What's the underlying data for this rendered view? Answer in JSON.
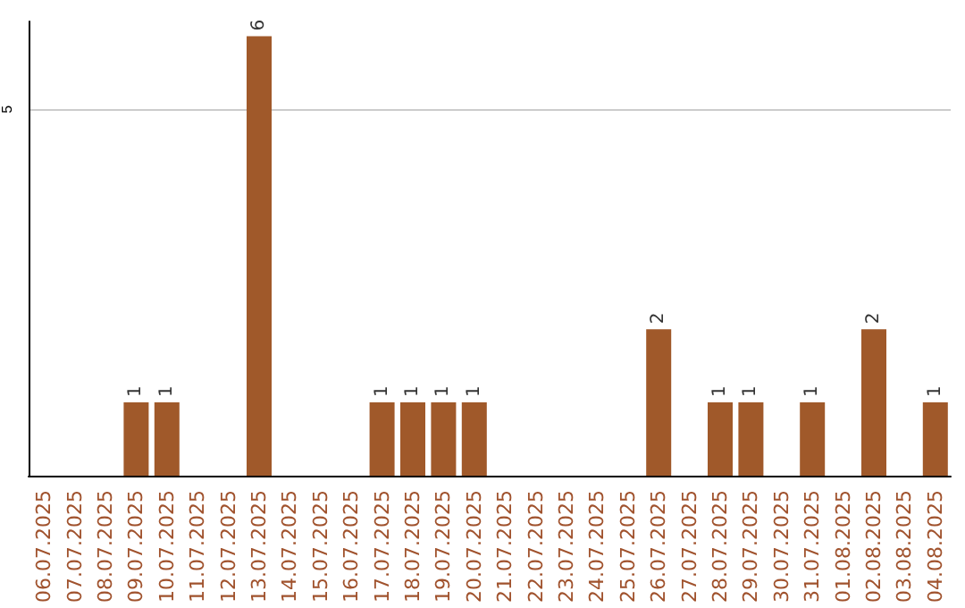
{
  "chart_data": {
    "type": "bar",
    "categories": [
      "06.07.2025",
      "07.07.2025",
      "08.07.2025",
      "09.07.2025",
      "10.07.2025",
      "11.07.2025",
      "12.07.2025",
      "13.07.2025",
      "14.07.2025",
      "15.07.2025",
      "16.07.2025",
      "17.07.2025",
      "18.07.2025",
      "19.07.2025",
      "20.07.2025",
      "21.07.2025",
      "22.07.2025",
      "23.07.2025",
      "24.07.2025",
      "25.07.2025",
      "26.07.2025",
      "27.07.2025",
      "28.07.2025",
      "29.07.2025",
      "30.07.2025",
      "31.07.2025",
      "01.08.2025",
      "02.08.2025",
      "03.08.2025",
      "04.08.2025"
    ],
    "values": [
      0,
      0,
      0,
      1,
      1,
      0,
      0,
      6,
      0,
      0,
      0,
      1,
      1,
      1,
      1,
      0,
      0,
      0,
      0,
      0,
      2,
      0,
      1,
      1,
      0,
      1,
      0,
      2,
      0,
      1
    ],
    "value_labels": [
      null,
      null,
      null,
      "1",
      "1",
      null,
      null,
      "6",
      null,
      null,
      null,
      "1",
      "1",
      "1",
      "1",
      null,
      null,
      null,
      null,
      null,
      "2",
      null,
      "1",
      "1",
      null,
      "1",
      null,
      "2",
      null,
      "1"
    ],
    "color": "#a0592a",
    "ylim": [
      0,
      6.2
    ],
    "yticks": [
      5
    ],
    "grid": "y"
  }
}
